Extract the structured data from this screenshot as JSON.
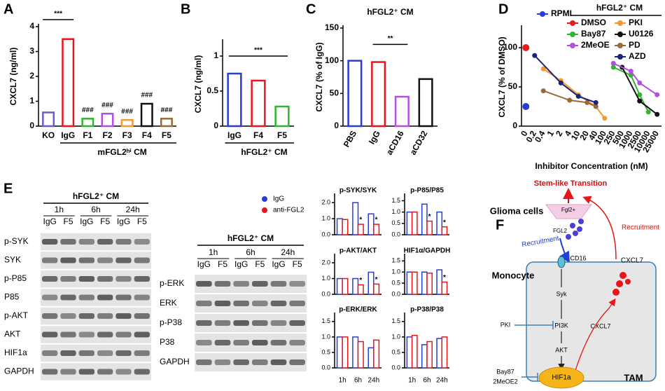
{
  "chart_data": [
    {
      "type": "bar",
      "label": "A",
      "ylabel": "CXCL7 (ng/ml)",
      "categories": [
        "KO",
        "IgG",
        "F1",
        "F2",
        "F3",
        "F4",
        "F5"
      ],
      "values": [
        0.55,
        3.5,
        0.3,
        0.5,
        0.25,
        0.9,
        0.3
      ],
      "colors": [
        "#6a5acd",
        "#e8161b",
        "#2fb52f",
        "#b44fe0",
        "#f39c33",
        "#111111",
        "#9a6a3a"
      ],
      "ylim": [
        0,
        4
      ],
      "yticks": [
        0,
        1,
        2,
        3,
        4
      ],
      "group_label": "mFGL2ʰⁱ CM",
      "annotations": [
        "***",
        "###",
        "###",
        "###",
        "###",
        "###"
      ]
    },
    {
      "type": "bar",
      "label": "B",
      "ylabel": "CXCL7 (ng/ml)",
      "categories": [
        "IgG",
        "F4",
        "F5"
      ],
      "values": [
        0.75,
        0.65,
        0.28
      ],
      "colors": [
        "#2a3cd8",
        "#e8161b",
        "#2fb52f"
      ],
      "ylim": [
        0,
        1.2
      ],
      "yticks": [
        0,
        0.5,
        1
      ],
      "group_label": "hFGL2⁺ CM",
      "annotations": [
        "***"
      ]
    },
    {
      "type": "bar",
      "label": "C",
      "title": "hFGL2⁺ CM",
      "ylabel": "CXCL7 (% of IgG)",
      "categories": [
        "PBS",
        "IgG",
        "aCD16",
        "aCD32"
      ],
      "values": [
        100,
        98,
        45,
        72
      ],
      "colors": [
        "#2a3cd8",
        "#e8161b",
        "#b44fe0",
        "#111111"
      ],
      "ylim": [
        0,
        150
      ],
      "yticks": [
        0,
        50,
        100,
        150
      ],
      "annotations": [
        "**"
      ]
    },
    {
      "type": "line",
      "label": "D",
      "ylabel": "CXCL7 (% of DMSO)",
      "xlabel": "Inhibitor Concentration (nM)",
      "legend_title": "hFGL2⁺ CM",
      "categories": [
        "0",
        "0.2",
        "0.4",
        "1",
        "2",
        "4",
        "10",
        "20",
        "40",
        "100",
        "250",
        "500",
        "1000",
        "2500",
        "10000",
        "25000"
      ],
      "ylim": [
        0,
        125
      ],
      "yticks": [
        0,
        50,
        100
      ],
      "series": [
        {
          "name": "RPMI",
          "color": "#2a3cd8",
          "values": [
            25,
            null,
            null,
            null,
            null,
            null,
            null,
            null,
            null,
            null,
            null,
            null,
            null,
            null,
            null,
            null
          ]
        },
        {
          "name": "DMSO",
          "color": "#e81b1b",
          "values": [
            100,
            null,
            null,
            null,
            null,
            null,
            null,
            null,
            null,
            null,
            null,
            null,
            null,
            null,
            null,
            null
          ]
        },
        {
          "name": "PKI",
          "color": "#f39a2e",
          "values": [
            null,
            null,
            73,
            null,
            58,
            null,
            40,
            null,
            25,
            10,
            null,
            null,
            null,
            null,
            null,
            null
          ]
        },
        {
          "name": "Bay87",
          "color": "#2fb52f",
          "values": [
            null,
            null,
            null,
            null,
            null,
            null,
            null,
            null,
            null,
            null,
            75,
            null,
            65,
            40,
            18,
            null
          ]
        },
        {
          "name": "U0126",
          "color": "#111111",
          "values": [
            null,
            null,
            null,
            null,
            null,
            null,
            null,
            null,
            null,
            null,
            null,
            75,
            null,
            32,
            null,
            15
          ]
        },
        {
          "name": "2MeOE",
          "color": "#b04fe0",
          "values": [
            null,
            null,
            null,
            null,
            null,
            null,
            null,
            null,
            null,
            null,
            80,
            null,
            70,
            55,
            null,
            40
          ]
        },
        {
          "name": "PD",
          "color": "#9a6a3a",
          "values": [
            null,
            null,
            45,
            null,
            null,
            33,
            null,
            30,
            25,
            null,
            null,
            null,
            null,
            null,
            null,
            null
          ]
        },
        {
          "name": "AZD",
          "color": "#1a237e",
          "values": [
            null,
            90,
            null,
            null,
            55,
            null,
            38,
            null,
            30,
            null,
            null,
            null,
            null,
            null,
            null,
            null
          ]
        }
      ]
    },
    {
      "type": "grouped_bar",
      "title": "p-SYK/SYK",
      "categories": [
        null,
        null,
        null
      ],
      "ylim": [
        0,
        2.4
      ],
      "yticks": [
        {
          "value": 0,
          "label": "0.0"
        },
        {
          "value": 1,
          "label": "1.0"
        },
        {
          "value": 2,
          "label": "2.0"
        }
      ],
      "series": [
        {
          "color": "#2a3cd8",
          "values": [
            1,
            2,
            1.3
          ]
        },
        {
          "color": "#e8161b",
          "values": [
            0.95,
            0.65,
            0.65
          ]
        }
      ],
      "annotations": [
        "*",
        "*"
      ]
    },
    {
      "type": "grouped_bar",
      "title": "p-P85/P85",
      "categories": [
        null,
        null,
        null
      ],
      "ylim": [
        0,
        1.7
      ],
      "yticks": [
        {
          "value": 0,
          "label": "0.0"
        },
        0.5,
        {
          "value": 1,
          "label": "1.0"
        },
        1.5
      ],
      "series": [
        {
          "color": "#2a3cd8",
          "values": [
            1,
            1.35,
            1
          ]
        },
        {
          "color": "#e8161b",
          "values": [
            1,
            0.6,
            0.35
          ]
        }
      ],
      "annotations": [
        "*",
        "*"
      ]
    },
    {
      "type": "grouped_bar",
      "title": "p-AKT/AKT",
      "categories": [
        null,
        null,
        null
      ],
      "ylim": [
        0,
        2.4
      ],
      "yticks": [
        {
          "value": 0,
          "label": "0.0"
        },
        {
          "value": 1,
          "label": "1.0"
        },
        {
          "value": 2,
          "label": "2.0"
        }
      ],
      "series": [
        {
          "color": "#2a3cd8",
          "values": [
            1,
            1,
            1.4
          ]
        },
        {
          "color": "#e8161b",
          "values": [
            1,
            0.6,
            0.65
          ]
        }
      ],
      "annotations": [
        "*",
        "*"
      ]
    },
    {
      "type": "grouped_bar",
      "title": "HIF1α/GAPDH",
      "categories": [
        null,
        null,
        null
      ],
      "ylim": [
        0,
        1.7
      ],
      "yticks": [
        {
          "value": 0,
          "label": "0.0"
        },
        0.5,
        {
          "value": 1,
          "label": "1.0"
        },
        1.5
      ],
      "series": [
        {
          "color": "#2a3cd8",
          "values": [
            1,
            1,
            1.1
          ]
        },
        {
          "color": "#e8161b",
          "values": [
            1,
            0.95,
            0.55
          ]
        }
      ],
      "annotations": [
        "*"
      ]
    },
    {
      "type": "grouped_bar",
      "title": "p-ERK/ERK",
      "categories": [
        "1h",
        "6h",
        "24h"
      ],
      "ylim": [
        0,
        1.7
      ],
      "yticks": [
        {
          "value": 0,
          "label": "0.0"
        },
        0.5,
        {
          "value": 1,
          "label": "1.0"
        },
        1.5
      ],
      "series": [
        {
          "color": "#2a3cd8",
          "values": [
            1,
            1,
            0.65
          ]
        },
        {
          "color": "#e8161b",
          "values": [
            1,
            0.85,
            0.9
          ]
        }
      ]
    },
    {
      "type": "grouped_bar",
      "title": "p-P38/P38",
      "categories": [
        "1h",
        "6h",
        "24h"
      ],
      "ylim": [
        0,
        1.7
      ],
      "yticks": [
        {
          "value": 0,
          "label": "0.0"
        },
        0.5,
        {
          "value": 1,
          "label": "1.0"
        },
        1.5
      ],
      "series": [
        {
          "color": "#2a3cd8",
          "values": [
            1,
            0.75,
            0.95
          ]
        },
        {
          "color": "#e8161b",
          "values": [
            1.05,
            0.85,
            1
          ]
        }
      ]
    }
  ],
  "e_panel": {
    "label": "E",
    "legend": [
      {
        "name": "IgG",
        "color": "#2a3cd8"
      },
      {
        "name": "anti-FGL2",
        "color": "#e8161b"
      }
    ],
    "blots": [
      {
        "title": "hFGL2⁺ CM",
        "times": [
          "1h",
          "6h",
          "24h"
        ],
        "lanes": [
          "IgG",
          "F5",
          "IgG",
          "F5",
          "IgG",
          "F5"
        ],
        "rows": [
          "p-SYK",
          "SYK",
          "p-P85",
          "P85",
          "p-AKT",
          "AKT",
          "HIF1a",
          "GAPDH"
        ]
      },
      {
        "title": "hFGL2⁺ CM",
        "times": [
          "1h",
          "6h",
          "24h"
        ],
        "lanes": [
          "IgG",
          "F5",
          "IgG",
          "F5",
          "IgG",
          "F5"
        ],
        "rows": [
          "p-ERK",
          "ERK",
          "p-P38",
          "P38",
          "GAPDH"
        ]
      }
    ]
  },
  "diagram": {
    "label": "F",
    "stem": "Stem-like Transition",
    "glioma": "Glioma cells",
    "fgl2_cell": "Fgl2+",
    "fgl2": "FGL2",
    "recruit_blue": "Recruitment",
    "recruit_red": "Recruitment",
    "monocyte": "Monocyte",
    "cd16": "CD16",
    "cxcl7_out": "CXCL7",
    "syk": "Syk",
    "pki": "PKI",
    "pi3k": "PI3K",
    "cxcl7_in": "CXCL7",
    "akt": "AKT",
    "bay87": "Bay87",
    "meoe2": "2MeOE2",
    "hif": "HIF1a",
    "tam": "TAM"
  }
}
